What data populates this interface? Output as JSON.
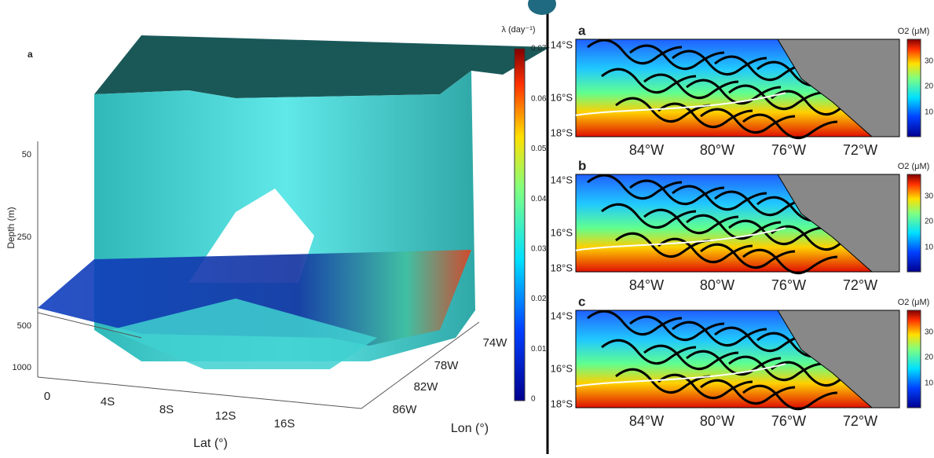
{
  "left": {
    "label": "a",
    "colorbar_title": "λ (day⁻¹)",
    "colorbar_ticks": [
      "0.07",
      "0.06",
      "0.05",
      "0.04",
      "0.03",
      "0.02",
      "0.01",
      "0"
    ],
    "depth_label": "Depth (m)",
    "depth_ticks": [
      "50",
      "250",
      "500",
      "1000"
    ],
    "lat_label": "Lat (°)",
    "lat_ticks": [
      "0",
      "4S",
      "8S",
      "12S",
      "16S"
    ],
    "lon_label": "Lon (°)",
    "lon_ticks": [
      "74W",
      "78W",
      "82W",
      "86W"
    ]
  },
  "right": {
    "panels": [
      {
        "label": "a",
        "lat_ticks": [
          "14°S",
          "16°S",
          "18°S"
        ],
        "lon_ticks": [
          "84°W",
          "80°W",
          "76°W",
          "72°W"
        ],
        "colorbar_title": "O2 (μM)",
        "colorbar_ticks": [
          "30",
          "20",
          "10"
        ]
      },
      {
        "label": "b",
        "lat_ticks": [
          "14°S",
          "16°S",
          "18°S"
        ],
        "lon_ticks": [
          "84°W",
          "80°W",
          "76°W",
          "72°W"
        ],
        "colorbar_title": "O2 (μM)",
        "colorbar_ticks": [
          "30",
          "20",
          "10"
        ]
      },
      {
        "label": "c",
        "lat_ticks": [
          "14°S",
          "16°S",
          "18°S"
        ],
        "lon_ticks": [
          "84°W",
          "80°W",
          "76°W",
          "72°W"
        ],
        "colorbar_title": "O2 (μM)",
        "colorbar_ticks": [
          "30",
          "20",
          "10"
        ]
      }
    ]
  }
}
